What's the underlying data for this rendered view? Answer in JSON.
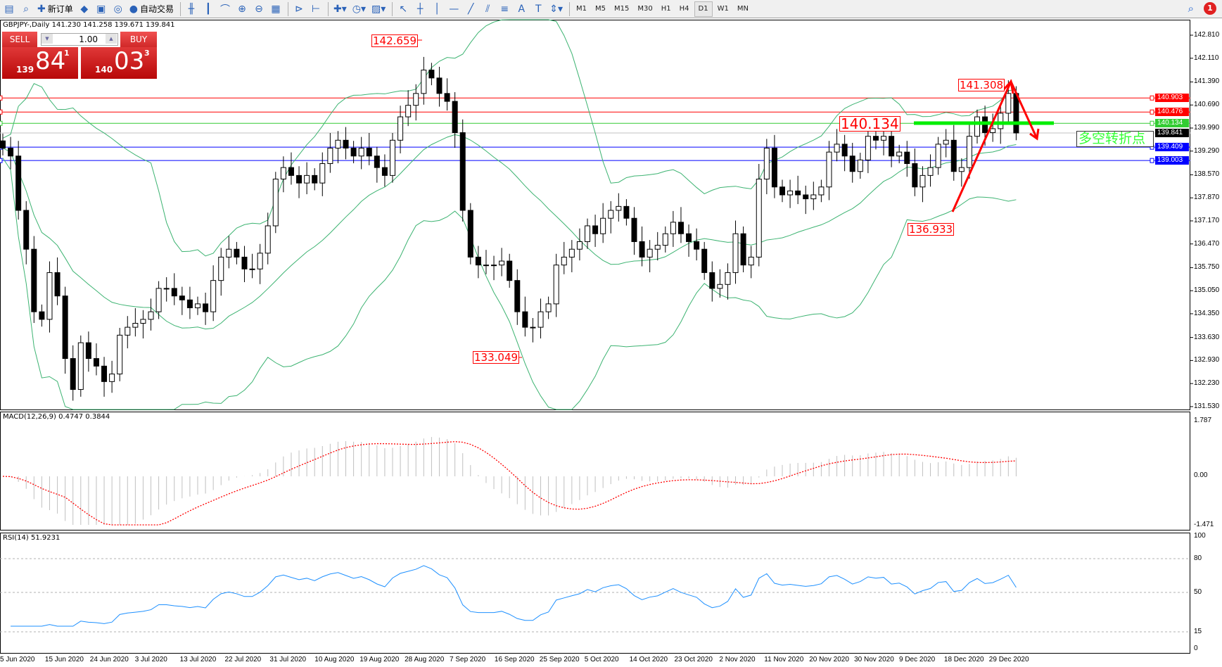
{
  "toolbar": {
    "items": [
      {
        "name": "market-watch",
        "glyph": "▤"
      },
      {
        "name": "data-window",
        "glyph": "⌕"
      },
      {
        "name": "new-order",
        "glyph": "✚",
        "label": "新订单"
      },
      {
        "name": "meta-editor",
        "glyph": "◆"
      },
      {
        "name": "terminal",
        "glyph": "▣"
      },
      {
        "name": "signals",
        "glyph": "◎"
      },
      {
        "name": "auto-trading",
        "glyph": "●",
        "label": "自动交易"
      },
      {
        "name": "bar-chart",
        "glyph": "╫"
      },
      {
        "name": "candlestick",
        "glyph": "┃"
      },
      {
        "name": "line-chart",
        "glyph": "⌒"
      },
      {
        "name": "zoom-in",
        "glyph": "⊕"
      },
      {
        "name": "zoom-out",
        "glyph": "⊖"
      },
      {
        "name": "tile-windows",
        "glyph": "▦"
      },
      {
        "name": "chart-shift",
        "glyph": "⊳"
      },
      {
        "name": "auto-scroll",
        "glyph": "⊢"
      },
      {
        "name": "indicators",
        "glyph": "✚▾"
      },
      {
        "name": "periods",
        "glyph": "◷▾"
      },
      {
        "name": "templates",
        "glyph": "▨▾"
      },
      {
        "name": "cursor",
        "glyph": "↖"
      },
      {
        "name": "crosshair",
        "glyph": "┼"
      },
      {
        "name": "vertical-line",
        "glyph": "│"
      },
      {
        "name": "horizontal-line",
        "glyph": "—"
      },
      {
        "name": "trend-line",
        "glyph": "╱"
      },
      {
        "name": "equidistant-channel",
        "glyph": "⫽"
      },
      {
        "name": "fibonacci",
        "glyph": "≡"
      },
      {
        "name": "text",
        "glyph": "A"
      },
      {
        "name": "text-label",
        "glyph": "T"
      },
      {
        "name": "arrows",
        "glyph": "⇕▾"
      }
    ],
    "timeframes": [
      "M1",
      "M5",
      "M15",
      "M30",
      "H1",
      "H4",
      "D1",
      "W1",
      "MN"
    ],
    "active_timeframe": "D1",
    "notification_count": "1"
  },
  "symbol_line": "GBPJPY-,Daily  141.230 141.258 139.671 139.841",
  "trade_panel": {
    "sell_label": "SELL",
    "buy_label": "BUY",
    "lots": "1.00",
    "sell_big": "139",
    "sell_main": "84",
    "sell_pip": "1",
    "buy_big": "140",
    "buy_main": "03",
    "buy_pip": "3"
  },
  "price_axis": [
    "142.810",
    "142.110",
    "141.390",
    "140.690",
    "139.990",
    "139.290",
    "138.570",
    "137.870",
    "137.170",
    "136.470",
    "135.750",
    "135.050",
    "134.350",
    "133.630",
    "132.930",
    "132.230",
    "131.530"
  ],
  "levels": [
    {
      "price": "140.903",
      "color": "#ff0000"
    },
    {
      "price": "140.476",
      "color": "#ff0000"
    },
    {
      "price": "140.134",
      "color": "#33cc33"
    },
    {
      "price": "139.841",
      "color": "#000000",
      "line": "#c0c0c0"
    },
    {
      "price": "139.409",
      "color": "#0000ff"
    },
    {
      "price": "139.003",
      "color": "#0000ff"
    }
  ],
  "annotations": {
    "high": "142.659",
    "low": "133.049",
    "pivot": "140.134",
    "recent_high": "141.308",
    "recent_low": "136.933",
    "turn_text": "多空转折点"
  },
  "macd": {
    "label": "MACD(12,26,9) 0.4747 0.3844",
    "axis": [
      "1.787",
      "0.00",
      "-1.471"
    ]
  },
  "rsi": {
    "label": "RSI(14) 51.9231",
    "axis": [
      "100",
      "80",
      "50",
      "15",
      "0"
    ]
  },
  "dates": [
    "5 Jun 2020",
    "15 Jun 2020",
    "24 Jun 2020",
    "3 Jul 2020",
    "13 Jul 2020",
    "22 Jul 2020",
    "31 Jul 2020",
    "10 Aug 2020",
    "19 Aug 2020",
    "28 Aug 2020",
    "7 Sep 2020",
    "16 Sep 2020",
    "25 Sep 2020",
    "5 Oct 2020",
    "14 Oct 2020",
    "23 Oct 2020",
    "2 Nov 2020",
    "11 Nov 2020",
    "20 Nov 2020",
    "30 Nov 2020",
    "9 Dec 2020",
    "18 Dec 2020",
    "29 Dec 2020"
  ],
  "colors": {
    "bands": "#3cb371",
    "signal": "#ff0000",
    "histogram": "#c0c0c0",
    "rsi": "#1e90ff",
    "sell": "#d02828",
    "arrow": "#ff0000",
    "pivot_line": "#00ee00"
  },
  "closes": [
    139.38,
    139.14,
    137.49,
    136.31,
    134.41,
    134.18,
    135.6,
    134.89,
    132.99,
    132.05,
    133.47,
    132.99,
    132.76,
    132.29,
    132.52,
    133.7,
    133.94,
    134.06,
    134.18,
    134.41,
    135.12,
    135.12,
    134.89,
    134.77,
    134.53,
    134.65,
    134.41,
    135.36,
    136.07,
    136.31,
    136.07,
    135.71,
    135.71,
    136.19,
    137.02,
    138.44,
    138.79,
    138.55,
    138.32,
    138.55,
    138.32,
    138.91,
    139.38,
    139.62,
    139.38,
    139.14,
    139.38,
    139.14,
    138.79,
    138.55,
    139.62,
    140.33,
    140.68,
    141.04,
    141.75,
    141.51,
    141.04,
    140.8,
    139.85,
    137.49,
    136.07,
    135.83,
    135.83,
    135.83,
    135.95,
    135.36,
    134.41,
    133.94,
    133.94,
    134.41,
    134.65,
    135.83,
    136.07,
    136.31,
    136.54,
    137.02,
    136.78,
    137.25,
    137.49,
    137.61,
    137.25,
    136.54,
    136.07,
    136.31,
    136.43,
    136.78,
    137.13,
    136.78,
    136.54,
    136.31,
    135.6,
    135.12,
    135.24,
    135.6,
    136.78,
    135.83,
    136.07,
    138.44,
    139.38,
    138.2,
    137.96,
    138.08,
    137.96,
    137.84,
    137.96,
    138.2,
    139.26,
    139.5,
    139.14,
    138.67,
    139.02,
    139.74,
    139.62,
    139.74,
    139.14,
    139.26,
    138.91,
    138.2,
    138.55,
    138.79,
    139.5,
    139.62,
    138.67,
    138.79,
    139.74,
    140.33,
    139.85,
    139.97,
    140.44,
    141.04,
    139.84
  ]
}
